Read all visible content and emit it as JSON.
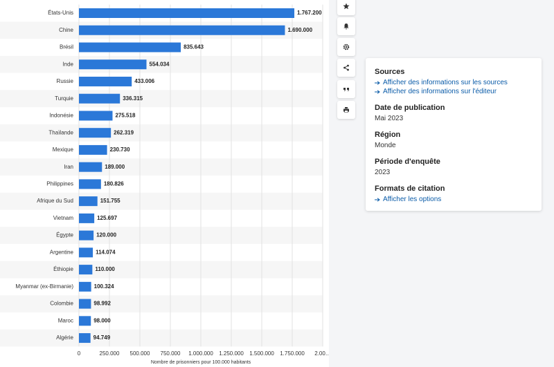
{
  "chart_data": {
    "type": "barh",
    "categories": [
      "États-Unis",
      "Chine",
      "Brésil",
      "Inde",
      "Russie",
      "Turquie",
      "Indonésie",
      "Thaïlande",
      "Mexique",
      "Iran",
      "Philippines",
      "Afrique du Sud",
      "Vietnam",
      "Égypte",
      "Argentine",
      "Éthiopie",
      "Myanmar (ex-Birmanie)",
      "Colombie",
      "Maroc",
      "Algérie"
    ],
    "values": [
      1767200,
      1690000,
      835643,
      554034,
      433006,
      336315,
      275518,
      262319,
      230730,
      189000,
      180826,
      151755,
      125697,
      120000,
      114074,
      110000,
      100324,
      98992,
      98000,
      94749
    ],
    "value_labels": [
      "1.767.200",
      "1.690.000",
      "835.643",
      "554.034",
      "433.006",
      "336.315",
      "275.518",
      "262.319",
      "230.730",
      "189.000",
      "180.826",
      "151.755",
      "125.697",
      "120.000",
      "114.074",
      "110.000",
      "100.324",
      "98.992",
      "98.000",
      "94.749"
    ],
    "color": "#2b78d8",
    "xlim": [
      0,
      2000000
    ],
    "xticks": [
      0,
      {
        "value": 250000,
        "label": "250.000"
      },
      {
        "value": 500000,
        "label": "500.000"
      },
      {
        "value": 750000,
        "label": "750.000"
      },
      {
        "value": 1000000,
        "label": "1.000.000"
      },
      {
        "value": 1250000,
        "label": "1.250.000"
      },
      {
        "value": 1500000,
        "label": "1.500.000"
      },
      {
        "value": 1750000,
        "label": "1.750.000"
      },
      {
        "value": 2000000,
        "label": "2.00…"
      }
    ],
    "xlabel": "Nombre de prisonniers pour 100.000 habitants",
    "grid": true
  },
  "sidebar": {
    "sources_title": "Sources",
    "sources_link": "Afficher des informations sur les sources",
    "publisher_link": "Afficher des informations sur l'éditeur",
    "date_title": "Date de publication",
    "date": "Mai 2023",
    "region_title": "Région",
    "region": "Monde",
    "period_title": "Période d'enquête",
    "period": "2023",
    "citation_title": "Formats de citation",
    "citation_link": "Afficher les options"
  }
}
